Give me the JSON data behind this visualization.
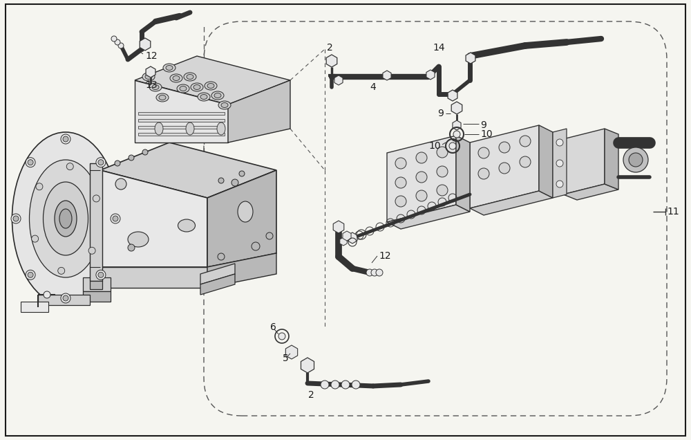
{
  "background_color": "#f5f5f0",
  "border_color": "#1a1a1a",
  "figure_width": 10.0,
  "figure_height": 6.36,
  "dpi": 100,
  "outline_color": "#2a2a2a",
  "light_fill": "#e8e8e8",
  "mid_fill": "#d0d0d0",
  "dark_fill": "#b8b8b8",
  "label_fontsize": 10,
  "dashed_color": "#555555",
  "parts_color": "#333333"
}
